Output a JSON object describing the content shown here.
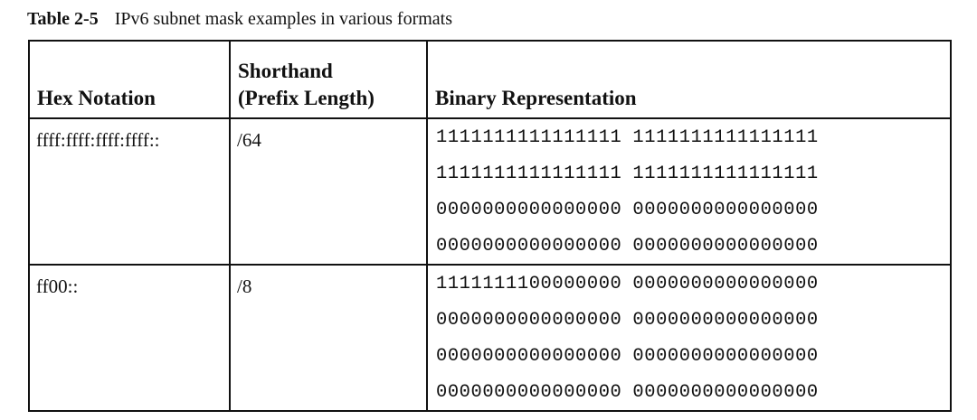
{
  "caption": {
    "number": "Table 2-5",
    "title": "IPv6 subnet mask examples in various formats"
  },
  "table": {
    "headers": {
      "hex": "Hex Notation",
      "shorthand_line1": "Shorthand",
      "shorthand_line2": "(Prefix Length)",
      "binary": "Binary Representation"
    },
    "rows": [
      {
        "hex": "ffff:ffff:ffff:ffff::",
        "shorthand": "/64",
        "binary": [
          [
            "1111111111111111",
            "1111111111111111"
          ],
          [
            "1111111111111111",
            "1111111111111111"
          ],
          [
            "0000000000000000",
            "0000000000000000"
          ],
          [
            "0000000000000000",
            "0000000000000000"
          ]
        ]
      },
      {
        "hex": "ff00::",
        "shorthand": "/8",
        "binary": [
          [
            "1111111100000000",
            "0000000000000000"
          ],
          [
            "0000000000000000",
            "0000000000000000"
          ],
          [
            "0000000000000000",
            "0000000000000000"
          ],
          [
            "0000000000000000",
            "0000000000000000"
          ]
        ]
      }
    ]
  }
}
